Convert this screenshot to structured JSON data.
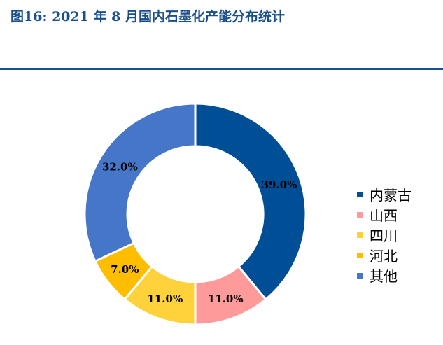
{
  "figure_title": "图16: 2021 年 8 月国内石墨化产能分布统计",
  "chart_data": {
    "type": "pie",
    "style": "donut",
    "title": "",
    "categories": [
      "内蒙古",
      "山西",
      "四川",
      "河北",
      "其他"
    ],
    "values": [
      39.0,
      11.0,
      11.0,
      7.0,
      32.0
    ],
    "data_labels": [
      "39.0%",
      "11.0%",
      "11.0%",
      "7.0%",
      "32.0%"
    ],
    "colors": [
      "#004E96",
      "#FF9A9A",
      "#FFD13A",
      "#FFBD00",
      "#4576C8"
    ],
    "legend_position": "right",
    "start_angle": "12 o'clock",
    "direction": "clockwise"
  }
}
